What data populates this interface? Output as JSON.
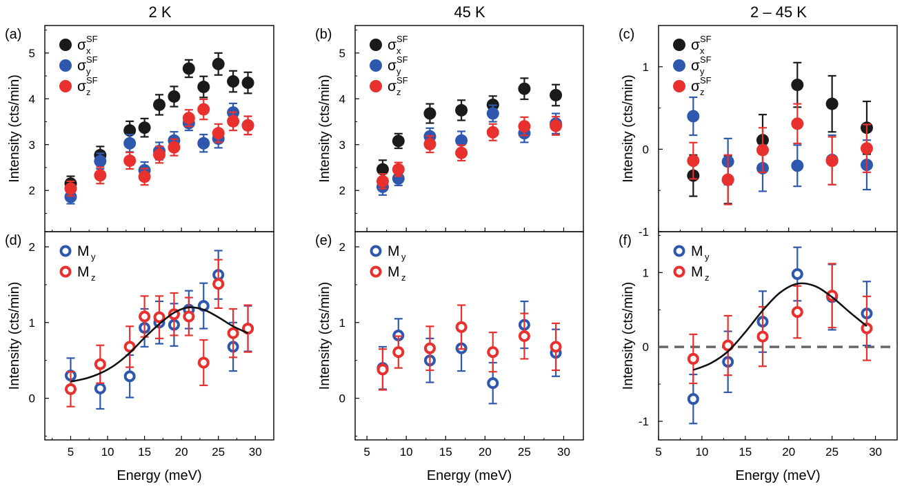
{
  "column_titles": [
    "2 K",
    "45 K",
    "2 – 45 K"
  ],
  "chart_data": [
    {
      "panel": "(a)",
      "type": "scatter",
      "column": 0,
      "row": 0,
      "xlabel": "",
      "ylabel": "Intensity (cts/min)",
      "xlim": [
        1.5,
        32.5
      ],
      "ylim": [
        1.1,
        5.6
      ],
      "xticks": [
        5,
        10,
        15,
        20,
        25,
        30
      ],
      "yticks": [
        2,
        3,
        4,
        5
      ],
      "show_xticklabels": false,
      "legend": "top-left",
      "series": [
        {
          "name": "σ",
          "sub": "x",
          "sup": "SF",
          "color": "#1a1a1a",
          "marker": "filled",
          "x": [
            5,
            9,
            13,
            15,
            17,
            19,
            21,
            23,
            25,
            27,
            29
          ],
          "y": [
            2.15,
            2.77,
            3.31,
            3.37,
            3.87,
            4.05,
            4.66,
            4.26,
            4.76,
            4.38,
            4.35
          ],
          "err": [
            0.16,
            0.19,
            0.2,
            0.2,
            0.22,
            0.22,
            0.19,
            0.23,
            0.24,
            0.23,
            0.23
          ]
        },
        {
          "name": "σ",
          "sub": "y",
          "sup": "SF",
          "color": "#2e58ad",
          "marker": "filled",
          "x": [
            5,
            9,
            13,
            15,
            17,
            19,
            21,
            23,
            25,
            27,
            29
          ],
          "y": [
            1.86,
            2.64,
            3.03,
            2.44,
            2.86,
            3.09,
            3.47,
            3.03,
            3.13,
            3.7,
            3.42
          ],
          "err": [
            0.15,
            0.17,
            0.19,
            0.18,
            0.19,
            0.19,
            0.16,
            0.19,
            0.2,
            0.2,
            0.2
          ]
        },
        {
          "name": "σ",
          "sub": "z",
          "sup": "SF",
          "color": "#e8302e",
          "marker": "filled",
          "x": [
            5,
            9,
            13,
            15,
            17,
            19,
            21,
            23,
            25,
            27,
            29
          ],
          "y": [
            2.04,
            2.33,
            2.65,
            2.3,
            2.78,
            2.94,
            3.58,
            3.77,
            3.25,
            3.51,
            3.42
          ],
          "err": [
            0.16,
            0.18,
            0.18,
            0.18,
            0.18,
            0.18,
            0.18,
            0.22,
            0.2,
            0.2,
            0.2
          ]
        }
      ]
    },
    {
      "panel": "(b)",
      "type": "scatter",
      "column": 1,
      "row": 0,
      "xlabel": "",
      "ylabel": "Intensity (cts/min)",
      "xlim": [
        3.5,
        32.5
      ],
      "ylim": [
        1.1,
        5.6
      ],
      "xticks": [
        5,
        10,
        15,
        20,
        25,
        30
      ],
      "yticks": [
        2,
        3,
        4,
        5
      ],
      "show_xticklabels": false,
      "legend": "top-left",
      "series": [
        {
          "name": "σ",
          "sub": "x",
          "sup": "SF",
          "color": "#1a1a1a",
          "marker": "filled",
          "x": [
            7,
            9,
            13,
            17,
            21,
            25,
            29
          ],
          "y": [
            2.46,
            3.08,
            3.68,
            3.75,
            3.87,
            4.22,
            4.08
          ],
          "err": [
            0.2,
            0.16,
            0.21,
            0.22,
            0.19,
            0.23,
            0.23
          ]
        },
        {
          "name": "σ",
          "sub": "y",
          "sup": "SF",
          "color": "#2e58ad",
          "marker": "filled",
          "x": [
            7,
            9,
            13,
            17,
            21,
            25,
            29
          ],
          "y": [
            2.08,
            2.26,
            3.18,
            3.09,
            3.68,
            3.25,
            3.46
          ],
          "err": [
            0.18,
            0.15,
            0.18,
            0.2,
            0.18,
            0.2,
            0.22
          ]
        },
        {
          "name": "σ",
          "sub": "z",
          "sup": "SF",
          "color": "#e8302e",
          "marker": "filled",
          "x": [
            7,
            9,
            13,
            17,
            21,
            25,
            29
          ],
          "y": [
            2.2,
            2.46,
            3.01,
            2.82,
            3.27,
            3.4,
            3.41
          ],
          "err": [
            0.16,
            0.15,
            0.18,
            0.17,
            0.18,
            0.2,
            0.2
          ]
        }
      ]
    },
    {
      "panel": "(c)",
      "type": "scatter",
      "column": 2,
      "row": 0,
      "xlabel": "",
      "ylabel": "Intensity (cts/min)",
      "xlim": [
        5,
        32.5
      ],
      "ylim": [
        -1,
        1.5
      ],
      "xticks": [
        5,
        10,
        15,
        20,
        25,
        30
      ],
      "yticks": [
        -1,
        0,
        1
      ],
      "show_xticklabels": false,
      "legend": "top-left",
      "series": [
        {
          "name": "σ",
          "sub": "x",
          "sup": "SF",
          "color": "#1a1a1a",
          "marker": "filled",
          "x": [
            9,
            13,
            17,
            21,
            25,
            29
          ],
          "y": [
            -0.32,
            -0.37,
            0.11,
            0.78,
            0.55,
            0.26
          ],
          "err": [
            0.25,
            0.29,
            0.31,
            0.27,
            0.34,
            0.32
          ]
        },
        {
          "name": "σ",
          "sub": "y",
          "sup": "SF",
          "color": "#2e58ad",
          "marker": "filled",
          "x": [
            9,
            13,
            17,
            21,
            25,
            29
          ],
          "y": [
            0.4,
            -0.15,
            -0.23,
            -0.2,
            -0.13,
            -0.19
          ],
          "err": [
            0.23,
            0.28,
            0.28,
            0.25,
            0.3,
            0.3
          ]
        },
        {
          "name": "σ",
          "sub": "z",
          "sup": "SF",
          "color": "#e8302e",
          "marker": "filled",
          "x": [
            9,
            13,
            17,
            21,
            25,
            29
          ],
          "y": [
            -0.14,
            -0.37,
            -0.01,
            0.31,
            -0.14,
            0.01
          ],
          "err": [
            0.22,
            0.3,
            0.27,
            0.24,
            0.29,
            0.29
          ]
        }
      ]
    },
    {
      "panel": "(d)",
      "type": "scatter",
      "column": 0,
      "row": 1,
      "xlabel": "Energy (meV)",
      "ylabel": "Intensity (cts/min)",
      "xlim": [
        1.5,
        32.5
      ],
      "ylim": [
        -0.55,
        2.2
      ],
      "xticks": [
        5,
        10,
        15,
        20,
        25,
        30
      ],
      "xticklabels": [
        "5",
        "10",
        "15",
        "20",
        "25",
        "30"
      ],
      "yticks": [
        0,
        1,
        2
      ],
      "show_xticklabels": true,
      "legend": "top-left",
      "fit": {
        "color": "#111111",
        "x": [
          5,
          7,
          9,
          11,
          13,
          15,
          17,
          19,
          21,
          23,
          25,
          27,
          29
        ],
        "y": [
          0.22,
          0.26,
          0.33,
          0.44,
          0.6,
          0.8,
          0.98,
          1.13,
          1.2,
          1.17,
          1.07,
          0.95,
          0.86
        ]
      },
      "series": [
        {
          "name": "M",
          "sub": "y",
          "color": "#2e58ad",
          "marker": "open",
          "x": [
            5,
            9,
            13,
            15,
            17,
            19,
            21,
            23,
            25,
            27,
            29
          ],
          "y": [
            0.3,
            0.13,
            0.29,
            0.93,
            1.0,
            0.97,
            1.17,
            1.22,
            1.63,
            0.68,
            0.92
          ],
          "err": [
            0.23,
            0.27,
            0.28,
            0.25,
            0.28,
            0.28,
            0.25,
            0.3,
            0.32,
            0.32,
            0.3
          ]
        },
        {
          "name": "M",
          "sub": "z",
          "color": "#e8302e",
          "marker": "open",
          "x": [
            5,
            9,
            13,
            15,
            17,
            19,
            21,
            23,
            25,
            27,
            29
          ],
          "y": [
            0.12,
            0.45,
            0.68,
            1.08,
            1.07,
            1.11,
            1.08,
            0.47,
            1.51,
            0.86,
            0.92
          ],
          "err": [
            0.23,
            0.25,
            0.27,
            0.27,
            0.28,
            0.28,
            0.25,
            0.3,
            0.32,
            0.32,
            0.31
          ]
        }
      ]
    },
    {
      "panel": "(e)",
      "type": "scatter",
      "column": 1,
      "row": 1,
      "xlabel": "Energy (meV)",
      "ylabel": "Intensity (cts/min)",
      "xlim": [
        3.5,
        32.5
      ],
      "ylim": [
        -0.55,
        2.2
      ],
      "xticks": [
        5,
        10,
        15,
        20,
        25,
        30
      ],
      "xticklabels": [
        "5",
        "10",
        "15",
        "20",
        "25",
        "30"
      ],
      "yticks": [
        0,
        1,
        2
      ],
      "show_xticklabels": true,
      "legend": "top-left",
      "series": [
        {
          "name": "M",
          "sub": "y",
          "color": "#2e58ad",
          "marker": "open",
          "x": [
            7,
            9,
            13,
            17,
            21,
            25,
            29
          ],
          "y": [
            0.4,
            0.83,
            0.5,
            0.66,
            0.2,
            0.97,
            0.6
          ],
          "err": [
            0.28,
            0.22,
            0.29,
            0.3,
            0.27,
            0.31,
            0.31
          ]
        },
        {
          "name": "M",
          "sub": "z",
          "color": "#e8302e",
          "marker": "open",
          "x": [
            7,
            9,
            13,
            17,
            21,
            25,
            29
          ],
          "y": [
            0.38,
            0.61,
            0.66,
            0.94,
            0.61,
            0.82,
            0.68
          ],
          "err": [
            0.27,
            0.21,
            0.29,
            0.29,
            0.26,
            0.3,
            0.31
          ]
        }
      ]
    },
    {
      "panel": "(f)",
      "type": "scatter",
      "column": 2,
      "row": 1,
      "xlabel": "Energy (meV)",
      "ylabel": "Intensity (cts/min)",
      "xlim": [
        5,
        32.5
      ],
      "ylim": [
        -1.25,
        1.55
      ],
      "xticks": [
        5,
        10,
        15,
        20,
        25,
        30
      ],
      "xticklabels": [
        "5",
        "10",
        "15",
        "20",
        "25",
        "30"
      ],
      "yticks": [
        -1,
        0,
        1
      ],
      "show_xticklabels": true,
      "legend": "top-left",
      "zero_line": {
        "y": 0,
        "color": "#666666",
        "style": "dashed"
      },
      "fit": {
        "color": "#111111",
        "x": [
          9,
          11,
          13,
          15,
          17,
          19,
          21,
          23,
          25,
          27,
          29
        ],
        "y": [
          -0.31,
          -0.22,
          -0.06,
          0.2,
          0.49,
          0.73,
          0.85,
          0.82,
          0.67,
          0.47,
          0.28
        ]
      },
      "series": [
        {
          "name": "M",
          "sub": "y",
          "color": "#2e58ad",
          "marker": "open",
          "x": [
            9,
            13,
            17,
            21,
            25,
            29
          ],
          "y": [
            -0.7,
            -0.2,
            0.34,
            0.98,
            0.67,
            0.45
          ],
          "err": [
            0.33,
            0.41,
            0.41,
            0.36,
            0.44,
            0.43
          ]
        },
        {
          "name": "M",
          "sub": "z",
          "color": "#e8302e",
          "marker": "open",
          "x": [
            9,
            13,
            17,
            21,
            25,
            29
          ],
          "y": [
            -0.16,
            0.02,
            0.14,
            0.47,
            0.69,
            0.25
          ],
          "err": [
            0.33,
            0.4,
            0.4,
            0.35,
            0.43,
            0.43
          ]
        }
      ]
    }
  ]
}
